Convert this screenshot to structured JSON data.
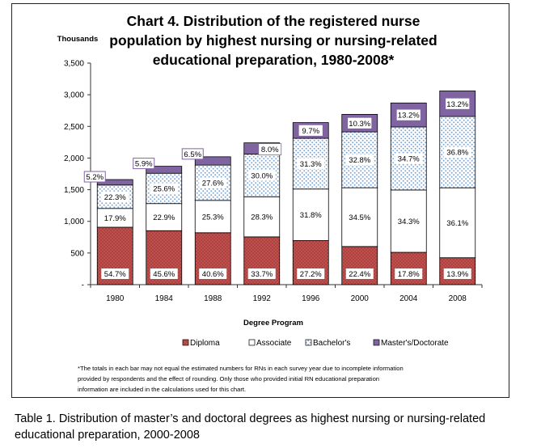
{
  "chart_data": {
    "type": "bar",
    "stacked": true,
    "title": "Chart 4.  Distribution of the registered nurse population by highest nursing or nursing-related educational preparation, 1980-2008*",
    "title_lines": [
      "Chart 4.  Distribution of the registered nurse",
      "population by highest nursing or nursing-related",
      "educational preparation, 1980-2008*"
    ],
    "ylabel": "Thousands",
    "xlabel": "Degree Program",
    "ylim": [
      0,
      3500
    ],
    "yticks": [
      0,
      500,
      1000,
      1500,
      2000,
      2500,
      3000,
      3500
    ],
    "ytick_labels": [
      "-",
      "500",
      "1,000",
      "1,500",
      "2,000",
      "2,500",
      "3,000",
      "3,500"
    ],
    "categories": [
      "1980",
      "1984",
      "1988",
      "1992",
      "1996",
      "2000",
      "2004",
      "2008"
    ],
    "totals": [
      1660,
      1870,
      2020,
      2240,
      2560,
      2690,
      2870,
      3060
    ],
    "series": [
      {
        "name": "Diploma",
        "color": "#c0504d",
        "pattern": "dots-dark",
        "labels": [
          "54.7%",
          "45.6%",
          "40.6%",
          "33.7%",
          "27.2%",
          "22.4%",
          "17.8%",
          "13.9%"
        ]
      },
      {
        "name": "Associate",
        "color": "#ffffff",
        "pattern": "none",
        "labels": [
          "17.9%",
          "22.9%",
          "25.3%",
          "28.3%",
          "31.8%",
          "34.5%",
          "34.3%",
          "36.1%"
        ]
      },
      {
        "name": "Bachelor's",
        "color": "#b9d4ee",
        "pattern": "dots-light",
        "labels": [
          "22.3%",
          "25.6%",
          "27.6%",
          "30.0%",
          "31.3%",
          "32.8%",
          "34.7%",
          "36.8%"
        ]
      },
      {
        "name": "Master's/Doctorate",
        "color": "#8064a2",
        "pattern": "none",
        "labels": [
          "5.2%",
          "5.9%",
          "6.5%",
          "8.0%",
          "9.7%",
          "10.3%",
          "13.2%",
          "13.2%"
        ]
      }
    ],
    "grid": false,
    "legend_position": "bottom",
    "footnote_lines": [
      "*The totals in each bar may not equal the estimated numbers for RNs in each survey year due to incomplete information",
      "provided by respondents and the effect of rounding.  Only those who provided initial RN educational preparation",
      "information are included in the calculations  used for this chart."
    ]
  },
  "caption": "Table 1.  Distribution of master’s and doctoral degrees as highest nursing or nursing-related educational preparation, 2000-2008"
}
